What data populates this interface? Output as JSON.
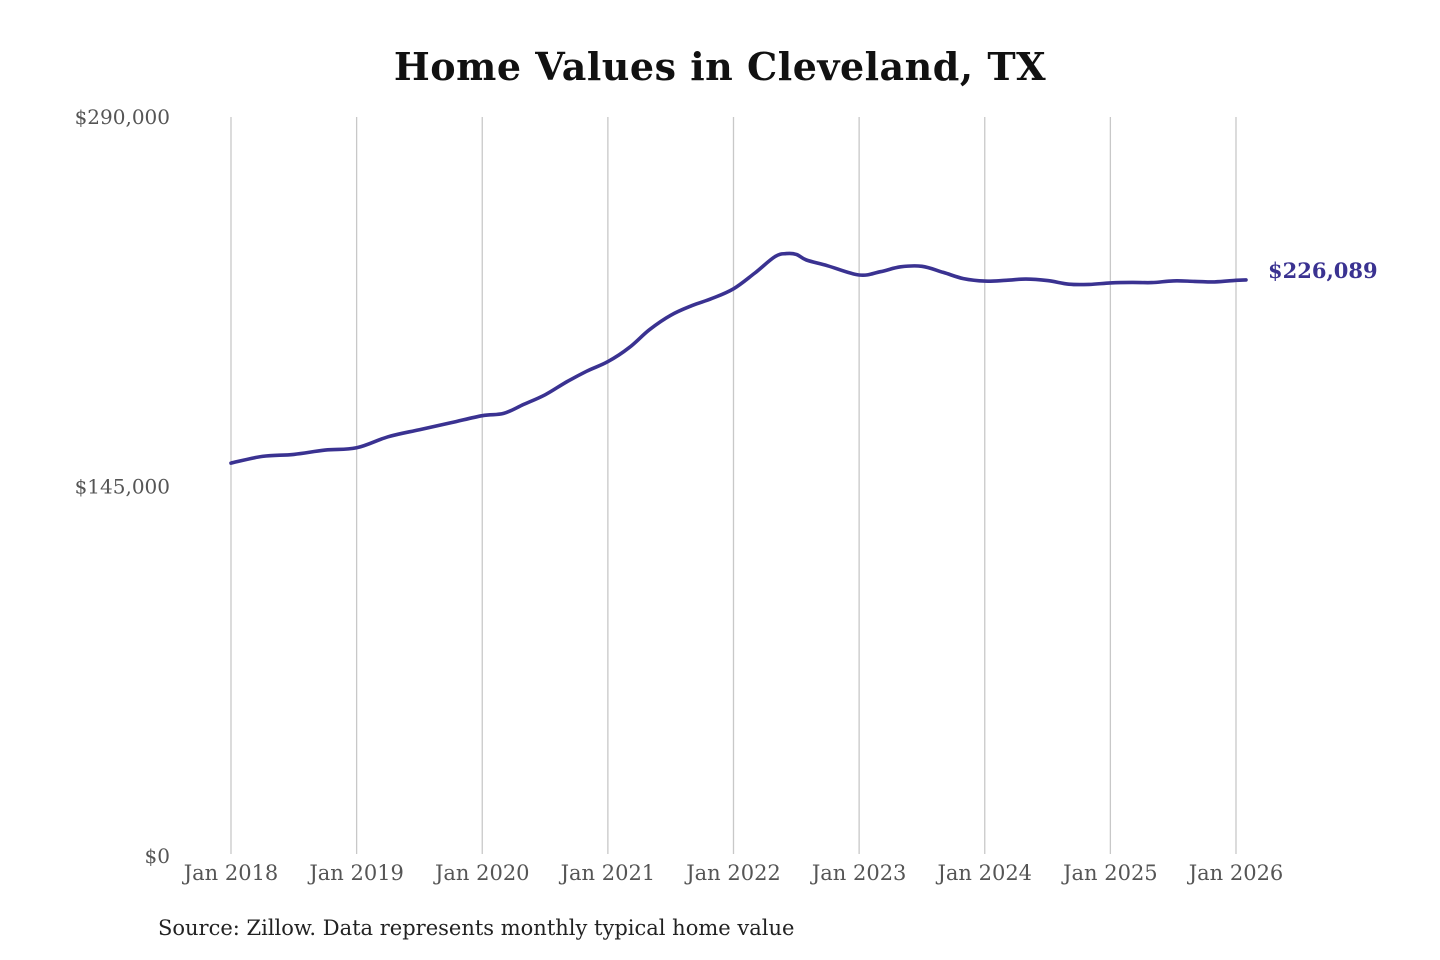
{
  "chart_data": {
    "type": "line",
    "title": "Home Values in Cleveland, TX",
    "xlabel": "",
    "ylabel": "",
    "ylim": [
      0,
      290000
    ],
    "y_ticks": [
      {
        "value": 290000,
        "label": "$290,000"
      },
      {
        "value": 145000,
        "label": "$145,000"
      },
      {
        "value": 0,
        "label": "$0"
      }
    ],
    "x_ticks": [
      {
        "year": 2018,
        "label": "Jan 2018"
      },
      {
        "year": 2019,
        "label": "Jan 2019"
      },
      {
        "year": 2020,
        "label": "Jan 2020"
      },
      {
        "year": 2021,
        "label": "Jan 2021"
      },
      {
        "year": 2022,
        "label": "Jan 2022"
      },
      {
        "year": 2023,
        "label": "Jan 2023"
      },
      {
        "year": 2024,
        "label": "Jan 2024"
      },
      {
        "year": 2025,
        "label": "Jan 2025"
      },
      {
        "year": 2026,
        "label": "Jan 2026"
      }
    ],
    "xlim": [
      2018,
      2026
    ],
    "grid": "vertical",
    "legend": "none",
    "series": [
      {
        "name": "Typical home value",
        "color": "#3a3291",
        "x": [
          2018.0,
          2018.25,
          2018.5,
          2018.75,
          2019.0,
          2019.25,
          2019.5,
          2019.75,
          2020.0,
          2020.17,
          2020.33,
          2020.5,
          2020.67,
          2020.83,
          2021.0,
          2021.17,
          2021.33,
          2021.5,
          2021.67,
          2021.83,
          2022.0,
          2022.17,
          2022.33,
          2022.42,
          2022.5,
          2022.58,
          2022.75,
          2023.0,
          2023.17,
          2023.33,
          2023.5,
          2023.67,
          2023.83,
          2024.0,
          2024.17,
          2024.33,
          2024.5,
          2024.67,
          2024.83,
          2025.0,
          2025.17,
          2025.33,
          2025.5,
          2025.67,
          2025.83,
          2026.0,
          2026.08
        ],
        "values": [
          154200,
          156800,
          157600,
          159300,
          160200,
          164500,
          167300,
          170000,
          172800,
          173700,
          177200,
          181000,
          186000,
          190200,
          194000,
          199500,
          206500,
          212200,
          216000,
          218800,
          222600,
          228800,
          235200,
          236400,
          236100,
          233900,
          231600,
          228000,
          229300,
          231200,
          231400,
          229000,
          226600,
          225600,
          225900,
          226400,
          225800,
          224400,
          224300,
          224900,
          225100,
          225000,
          225700,
          225500,
          225300,
          225900,
          226089
        ]
      }
    ],
    "annotations": [
      {
        "text": "$226,089",
        "x": 2026.08,
        "y": 226089,
        "color": "#3a3291"
      }
    ]
  },
  "footer": {
    "source": "Source: Zillow. Data represents monthly typical home value"
  }
}
